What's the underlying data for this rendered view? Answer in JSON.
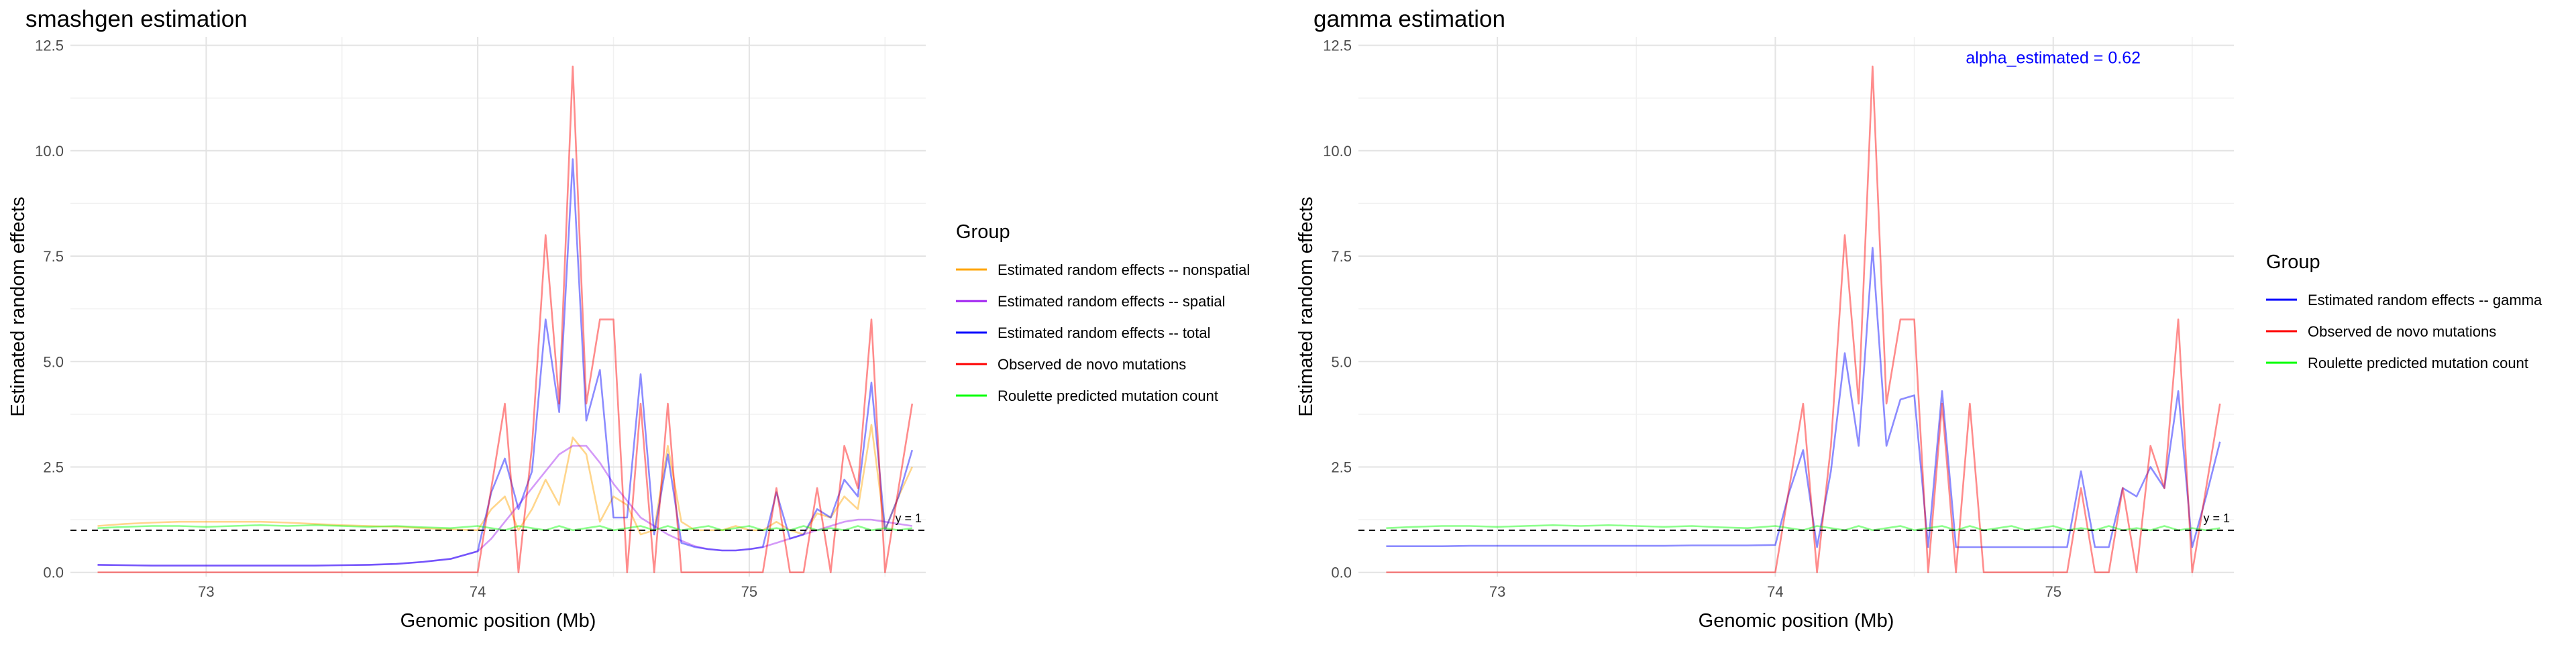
{
  "chart_data": [
    {
      "type": "line",
      "title": "smashgen estimation",
      "xlabel": "Genomic position (Mb)",
      "ylabel": "Estimated random effects",
      "xlim": [
        72.5,
        75.65
      ],
      "ylim": [
        -0.1,
        12.7
      ],
      "xticks": [
        73,
        74,
        75
      ],
      "xtick_labels": [
        "73",
        "74",
        "75"
      ],
      "yticks": [
        0,
        2.5,
        5,
        7.5,
        10,
        12.5
      ],
      "ytick_labels": [
        "0.0",
        "2.5",
        "5.0",
        "7.5",
        "10.0",
        "12.5"
      ],
      "grid": true,
      "legend_title": "Group",
      "legend_position": "right",
      "hline": {
        "y": 1,
        "label": "y = 1",
        "style": "dashed"
      },
      "x": [
        72.6,
        72.7,
        72.8,
        72.9,
        73.0,
        73.1,
        73.2,
        73.3,
        73.4,
        73.5,
        73.6,
        73.7,
        73.8,
        73.9,
        74.0,
        74.05,
        74.1,
        74.15,
        74.2,
        74.25,
        74.3,
        74.35,
        74.4,
        74.45,
        74.5,
        74.55,
        74.6,
        74.65,
        74.7,
        74.75,
        74.8,
        74.85,
        74.9,
        74.95,
        75.0,
        75.05,
        75.1,
        75.15,
        75.2,
        75.25,
        75.3,
        75.35,
        75.4,
        75.45,
        75.5,
        75.55,
        75.6
      ],
      "series": [
        {
          "name": "Estimated random effects -- nonspatial",
          "color": "#ffa500",
          "values": [
            1.1,
            1.15,
            1.18,
            1.2,
            1.2,
            1.2,
            1.2,
            1.18,
            1.15,
            1.12,
            1.1,
            1.08,
            1.05,
            1.02,
            1.0,
            1.5,
            1.8,
            1.0,
            1.5,
            2.2,
            1.6,
            3.2,
            2.8,
            1.2,
            1.8,
            1.6,
            0.9,
            1.0,
            3.0,
            1.2,
            1.0,
            1.0,
            1.0,
            1.1,
            1.0,
            1.0,
            1.2,
            1.0,
            0.9,
            1.4,
            1.3,
            1.8,
            1.5,
            3.5,
            1.0,
            1.8,
            2.5
          ]
        },
        {
          "name": "Estimated random effects -- spatial",
          "color": "#a020f0",
          "values": [
            0.18,
            0.17,
            0.16,
            0.16,
            0.16,
            0.16,
            0.16,
            0.16,
            0.16,
            0.17,
            0.18,
            0.2,
            0.25,
            0.32,
            0.5,
            0.8,
            1.2,
            1.6,
            2.0,
            2.4,
            2.8,
            3.0,
            3.0,
            2.6,
            2.1,
            1.7,
            1.3,
            1.1,
            0.9,
            0.75,
            0.62,
            0.55,
            0.52,
            0.52,
            0.55,
            0.6,
            0.7,
            0.8,
            0.9,
            1.0,
            1.1,
            1.2,
            1.25,
            1.25,
            1.2,
            1.15,
            1.1
          ]
        },
        {
          "name": "Estimated random effects -- total",
          "color": "#0000ff",
          "values": [
            0.18,
            0.17,
            0.16,
            0.16,
            0.16,
            0.16,
            0.16,
            0.16,
            0.16,
            0.17,
            0.18,
            0.2,
            0.25,
            0.32,
            0.5,
            1.9,
            2.7,
            1.5,
            2.4,
            6.0,
            3.8,
            9.8,
            3.6,
            4.8,
            1.3,
            1.3,
            4.7,
            0.9,
            2.8,
            0.7,
            0.6,
            0.55,
            0.52,
            0.52,
            0.55,
            0.6,
            1.9,
            0.8,
            0.9,
            1.5,
            1.3,
            2.2,
            1.8,
            4.5,
            1.0,
            1.8,
            2.9
          ]
        },
        {
          "name": "Observed de novo mutations",
          "color": "#ff0000",
          "values": [
            0,
            0,
            0,
            0,
            0,
            0,
            0,
            0,
            0,
            0,
            0,
            0,
            0,
            0,
            0,
            2,
            4,
            0,
            3,
            8,
            4,
            12,
            4,
            6,
            6,
            0,
            4,
            0,
            4,
            0,
            0,
            0,
            0,
            0,
            0,
            0,
            2,
            0,
            0,
            2,
            0,
            3,
            2,
            6,
            0,
            2,
            4
          ]
        },
        {
          "name": "Roulette predicted mutation count",
          "color": "#00ff00",
          "values": [
            1.05,
            1.08,
            1.1,
            1.1,
            1.08,
            1.1,
            1.12,
            1.1,
            1.12,
            1.1,
            1.08,
            1.1,
            1.07,
            1.05,
            1.1,
            1.05,
            1.0,
            1.1,
            1.05,
            1.0,
            1.1,
            1.0,
            1.05,
            1.1,
            1.0,
            1.05,
            1.1,
            1.0,
            1.1,
            1.0,
            1.05,
            1.1,
            1.0,
            1.05,
            1.1,
            1.0,
            1.05,
            1.0,
            1.1,
            1.0,
            1.05,
            1.0,
            1.1,
            1.0,
            1.05,
            1.0,
            1.05
          ]
        }
      ]
    },
    {
      "type": "line",
      "title": "gamma estimation",
      "annotation": "alpha_estimated = 0.62",
      "annotation_color": "#0000ff",
      "xlabel": "Genomic position (Mb)",
      "ylabel": "Estimated random effects",
      "xlim": [
        72.5,
        75.65
      ],
      "ylim": [
        -0.1,
        12.7
      ],
      "xticks": [
        73,
        74,
        75
      ],
      "xtick_labels": [
        "73",
        "74",
        "75"
      ],
      "yticks": [
        0,
        2.5,
        5,
        7.5,
        10,
        12.5
      ],
      "ytick_labels": [
        "0.0",
        "2.5",
        "5.0",
        "7.5",
        "10.0",
        "12.5"
      ],
      "grid": true,
      "legend_title": "Group",
      "legend_position": "right",
      "hline": {
        "y": 1,
        "label": "y = 1",
        "style": "dashed"
      },
      "x": [
        72.6,
        72.7,
        72.8,
        72.9,
        73.0,
        73.1,
        73.2,
        73.3,
        73.4,
        73.5,
        73.6,
        73.7,
        73.8,
        73.9,
        74.0,
        74.05,
        74.1,
        74.15,
        74.2,
        74.25,
        74.3,
        74.35,
        74.4,
        74.45,
        74.5,
        74.55,
        74.6,
        74.65,
        74.7,
        74.75,
        74.8,
        74.85,
        74.9,
        74.95,
        75.0,
        75.05,
        75.1,
        75.15,
        75.2,
        75.25,
        75.3,
        75.35,
        75.4,
        75.45,
        75.5,
        75.55,
        75.6
      ],
      "series": [
        {
          "name": "Estimated random effects -- gamma",
          "color": "#0000ff",
          "values": [
            0.62,
            0.62,
            0.62,
            0.63,
            0.63,
            0.63,
            0.63,
            0.63,
            0.63,
            0.63,
            0.63,
            0.64,
            0.64,
            0.64,
            0.65,
            1.9,
            2.9,
            0.6,
            2.4,
            5.2,
            3.0,
            7.7,
            3.0,
            4.1,
            4.2,
            0.6,
            4.3,
            0.6,
            0.6,
            0.6,
            0.6,
            0.6,
            0.6,
            0.6,
            0.6,
            0.6,
            2.4,
            0.6,
            0.6,
            2.0,
            1.8,
            2.5,
            2.0,
            4.3,
            0.6,
            1.8,
            3.1
          ]
        },
        {
          "name": "Observed de novo mutations",
          "color": "#ff0000",
          "values": [
            0,
            0,
            0,
            0,
            0,
            0,
            0,
            0,
            0,
            0,
            0,
            0,
            0,
            0,
            0,
            2,
            4,
            0,
            3,
            8,
            4,
            12,
            4,
            6,
            6,
            0,
            4,
            0,
            4,
            0,
            0,
            0,
            0,
            0,
            0,
            0,
            2,
            0,
            0,
            2,
            0,
            3,
            2,
            6,
            0,
            2,
            4
          ]
        },
        {
          "name": "Roulette predicted mutation count",
          "color": "#00ff00",
          "values": [
            1.05,
            1.08,
            1.1,
            1.1,
            1.08,
            1.1,
            1.12,
            1.1,
            1.12,
            1.1,
            1.08,
            1.1,
            1.07,
            1.05,
            1.1,
            1.05,
            1.0,
            1.1,
            1.05,
            1.0,
            1.1,
            1.0,
            1.05,
            1.1,
            1.0,
            1.05,
            1.1,
            1.0,
            1.1,
            1.0,
            1.05,
            1.1,
            1.0,
            1.05,
            1.1,
            1.0,
            1.05,
            1.0,
            1.1,
            1.0,
            1.05,
            1.0,
            1.1,
            1.0,
            1.05,
            1.0,
            1.05
          ]
        }
      ]
    }
  ]
}
